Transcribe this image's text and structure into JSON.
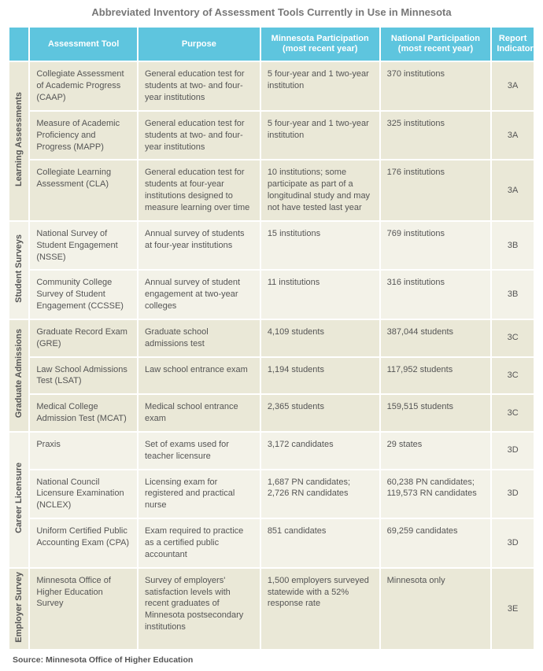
{
  "title": "Abbreviated Inventory of Assessment Tools Currently in Use in Minnesota",
  "columns": {
    "c0": "",
    "c1": "Assessment Tool",
    "c2": "Purpose",
    "c3": "Minnesota Participation (most recent year)",
    "c4": "National Participation (most recent year)",
    "c5": "Report Indicator"
  },
  "groups": [
    {
      "label": "Learning Assessments",
      "rows": [
        {
          "tool": "Collegiate Assessment of Academic Progress (CAAP)",
          "purpose": "General education test for students at two- and four-year institutions",
          "mn": "5 four-year and 1 two-year institution",
          "nat": "370 institutions",
          "ri": "3A"
        },
        {
          "tool": "Measure of Academic Proficiency and Progress (MAPP)",
          "purpose": "General education test for students at two- and four-year institutions",
          "mn": "5 four-year and 1 two-year institution",
          "nat": "325 institutions",
          "ri": "3A"
        },
        {
          "tool": "Collegiate Learning Assessment (CLA)",
          "purpose": "General education test for students at four-year institutions designed to measure learning over time",
          "mn": "10 institutions; some participate as part of a longitudinal study and may not have tested last year",
          "nat": "176 institutions",
          "ri": "3A"
        }
      ]
    },
    {
      "label": "Student Surveys",
      "rows": [
        {
          "tool": "National Survey of Student Engagement (NSSE)",
          "purpose": "Annual survey of students at four-year institutions",
          "mn": "15 institutions",
          "nat": "769 institutions",
          "ri": "3B"
        },
        {
          "tool": "Community College Survey of Student Engagement (CCSSE)",
          "purpose": "Annual survey of student engagement at two-year colleges",
          "mn": "11 institutions",
          "nat": "316 institutions",
          "ri": "3B"
        }
      ]
    },
    {
      "label": "Graduate Admissions",
      "rows": [
        {
          "tool": "Graduate Record Exam (GRE)",
          "purpose": "Graduate school admissions test",
          "mn": "4,109 students",
          "nat": "387,044 students",
          "ri": "3C"
        },
        {
          "tool": "Law School Admissions Test (LSAT)",
          "purpose": "Law school entrance exam",
          "mn": "1,194 students",
          "nat": "117,952 students",
          "ri": "3C"
        },
        {
          "tool": "Medical College Admission Test (MCAT)",
          "purpose": "Medical school entrance exam",
          "mn": "2,365 students",
          "nat": "159,515 students",
          "ri": "3C"
        }
      ]
    },
    {
      "label": "Career Licensure",
      "rows": [
        {
          "tool": "Praxis",
          "purpose": "Set of exams used for teacher licensure",
          "mn": "3,172 candidates",
          "nat": "29 states",
          "ri": "3D"
        },
        {
          "tool": "National Council Licensure Examination (NCLEX)",
          "purpose": "Licensing exam for registered and practical nurse",
          "mn": "1,687 PN candidates; 2,726 RN candidates",
          "nat": "60,238 PN candidates; 119,573 RN candidates",
          "ri": "3D"
        },
        {
          "tool": "Uniform Certified Public Accounting Exam (CPA)",
          "purpose": "Exam required to practice as a certified public accountant",
          "mn": "851 candidates",
          "nat": "69,259 candidates",
          "ri": "3D"
        }
      ]
    },
    {
      "label": "Employer Survey",
      "rows": [
        {
          "tool": "Minnesota Office of Higher Education Survey",
          "purpose": "Survey of employers' satisfaction levels with recent graduates of Minnesota postsecondary institutions",
          "mn": "1,500 employers surveyed statewide with a 52% response rate",
          "nat": "Minnesota only",
          "ri": "3E"
        }
      ]
    }
  ],
  "source": "Source: Minnesota Office of Higher Education",
  "colors": {
    "header_bg": "#5ec5de",
    "header_fg": "#ffffff",
    "row_bg_primary": "#eae8d7",
    "row_bg_alt": "#f3f2e8",
    "border": "#ffffff",
    "text": "#555555"
  }
}
